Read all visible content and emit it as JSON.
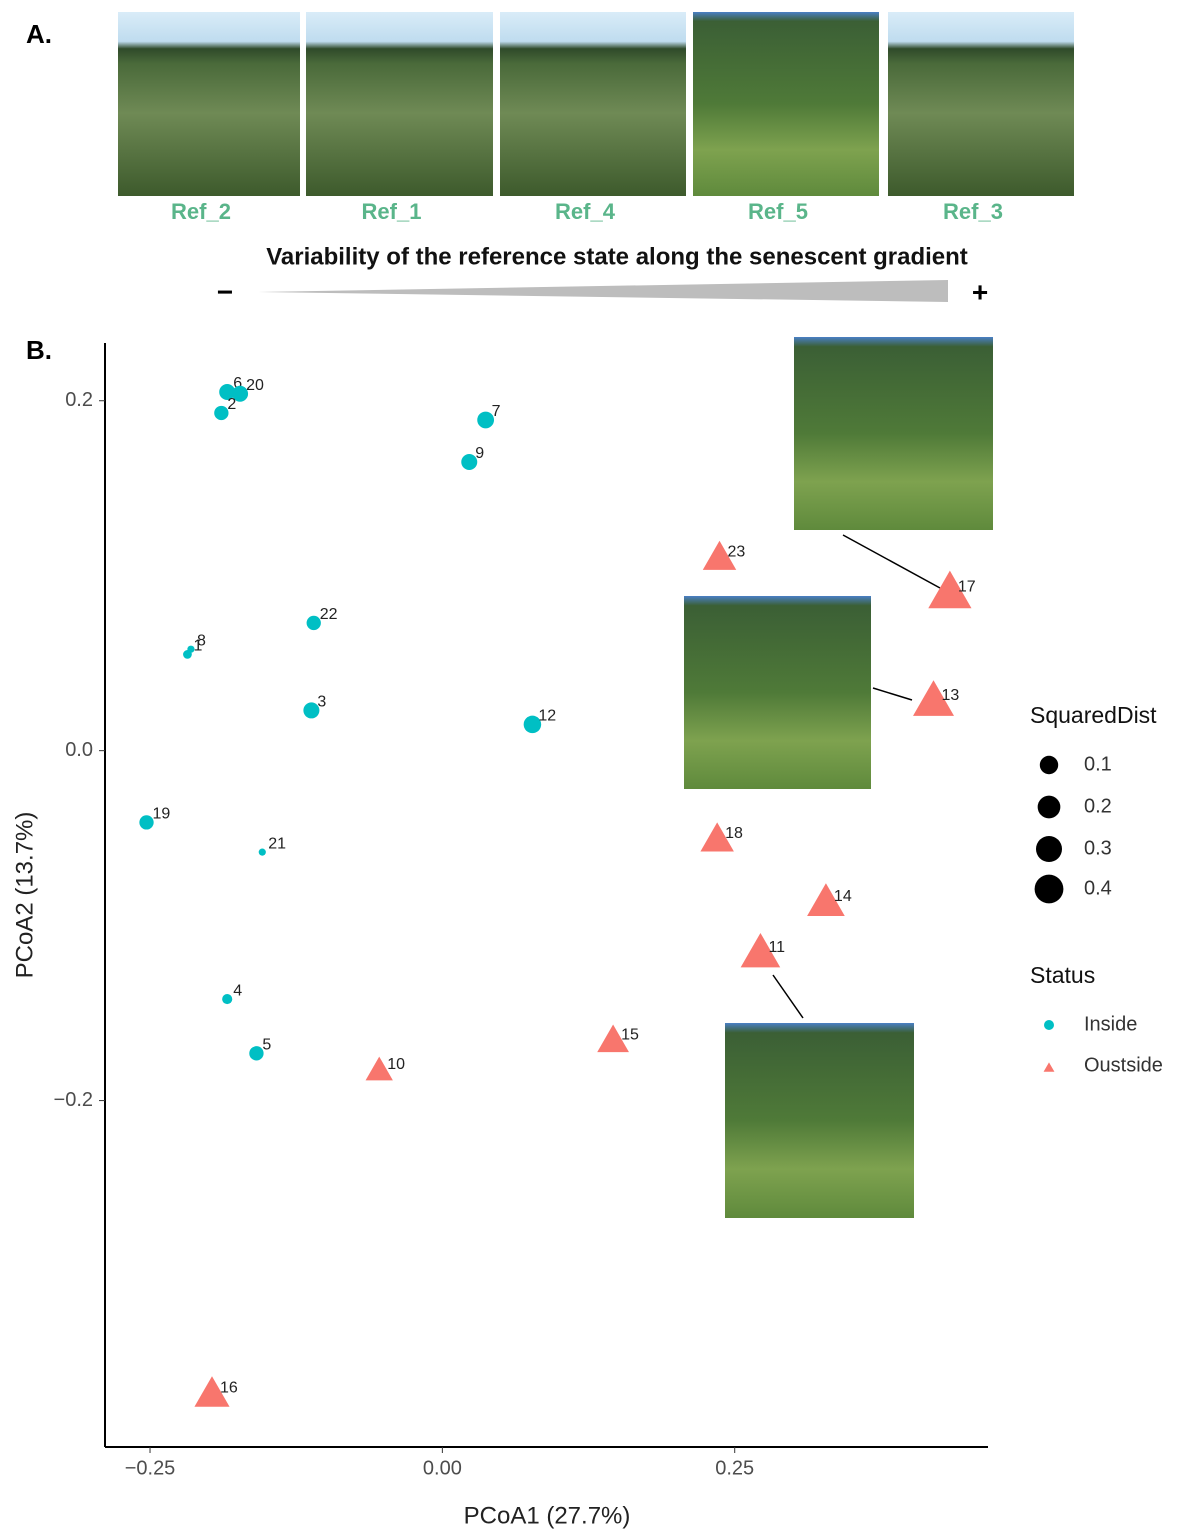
{
  "panel_a": {
    "label": "A.",
    "photos": [
      "Ref_2",
      "Ref_1",
      "Ref_4",
      "Ref_5",
      "Ref_3"
    ],
    "gradient_title": "Variability of the reference state along the senescent gradient",
    "minus": "−",
    "plus": "+"
  },
  "panel_b_label": "B.",
  "chart_data": {
    "type": "scatter",
    "x_label": "PCoA1 (27.7%)",
    "y_label": "PCoA2 (13.7%)",
    "xlim": [
      -0.2885,
      0.4666
    ],
    "ylim": [
      -0.398,
      0.233
    ],
    "xticks": [
      {
        "value": -0.25,
        "label": "−0.25"
      },
      {
        "value": 0,
        "label": "0.00"
      },
      {
        "value": 0.25,
        "label": "0.25"
      }
    ],
    "yticks": [
      {
        "value": -0.2,
        "label": "−0.2"
      },
      {
        "value": 0,
        "label": "0.0"
      },
      {
        "value": 0.2,
        "label": "0.2"
      }
    ],
    "grid": false,
    "legend_title": "Status",
    "size_legend": {
      "title": "SquaredDist",
      "values": [
        0.1,
        0.2,
        0.3,
        0.4
      ]
    },
    "series": [
      {
        "name": "Inside",
        "color": "#00BFC4",
        "marker": "circle",
        "labels": [
          "6",
          "20",
          "2",
          "7",
          "9",
          "22",
          "1",
          "8",
          "3",
          "12",
          "19",
          "21",
          "4",
          "5"
        ],
        "x": [
          -0.184,
          -0.173,
          -0.189,
          0.037,
          0.023,
          -0.11,
          -0.218,
          -0.215,
          -0.112,
          0.077,
          -0.253,
          -0.154,
          -0.184,
          -0.159
        ],
        "values": [
          0.205,
          0.204,
          0.193,
          0.189,
          0.165,
          0.073,
          0.055,
          0.058,
          0.023,
          0.015,
          -0.041,
          -0.058,
          -0.142,
          -0.173
        ],
        "sizes": [
          0.1,
          0.1,
          0.08,
          0.11,
          0.1,
          0.08,
          0.03,
          0.02,
          0.1,
          0.12,
          0.08,
          0.02,
          0.04,
          0.08
        ]
      },
      {
        "name": "Oustside",
        "color": "#F8766D",
        "marker": "triangle",
        "labels": [
          "23",
          "17",
          "13",
          "18",
          "14",
          "11",
          "15",
          "10",
          "16"
        ],
        "x": [
          0.237,
          0.434,
          0.42,
          0.235,
          0.328,
          0.272,
          0.146,
          -0.054,
          -0.197
        ],
        "values": [
          0.11,
          0.09,
          0.028,
          -0.051,
          -0.087,
          -0.116,
          -0.166,
          -0.183,
          -0.368
        ],
        "sizes": [
          0.3,
          0.5,
          0.45,
          0.3,
          0.38,
          0.42,
          0.27,
          0.2,
          0.33
        ]
      }
    ]
  }
}
